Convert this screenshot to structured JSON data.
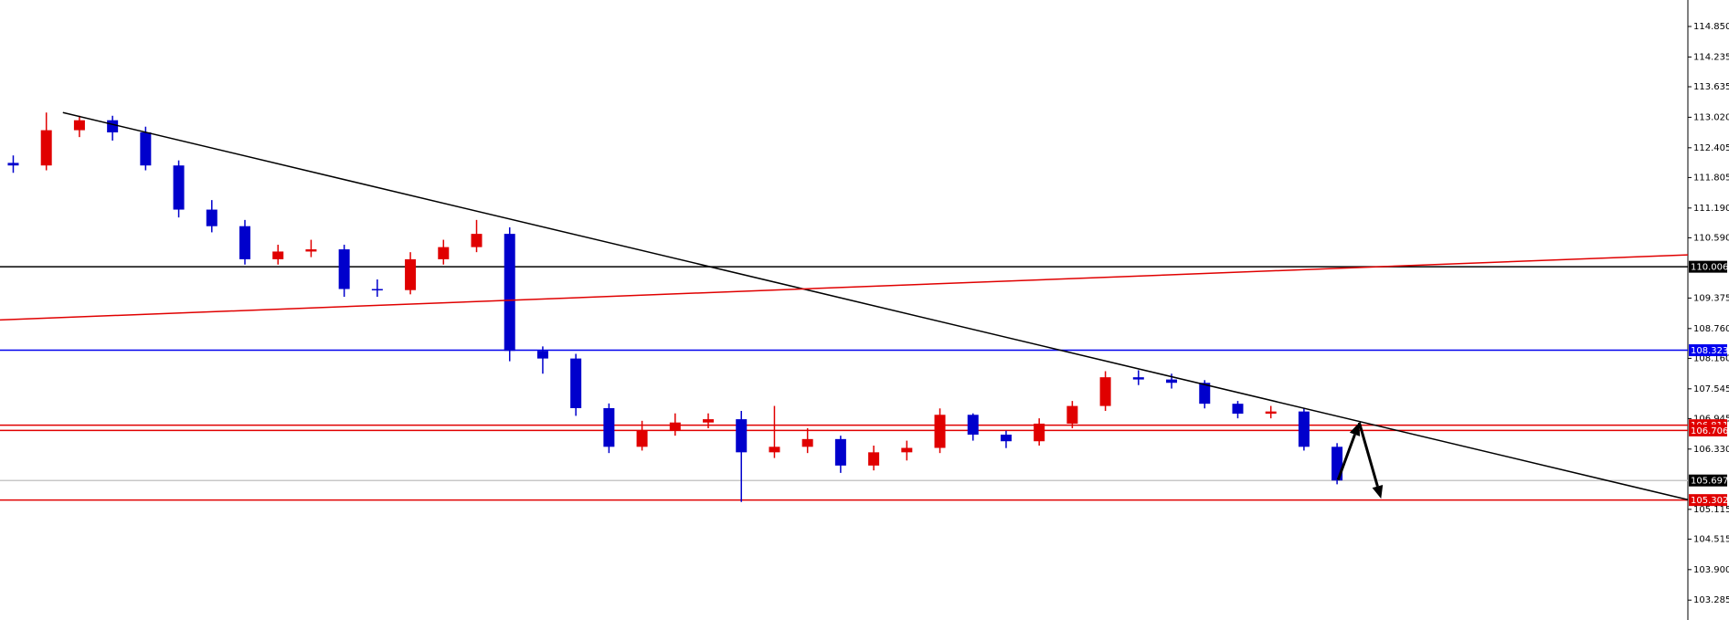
{
  "chart_data": {
    "type": "candlestick",
    "categories": [
      null,
      null,
      null,
      null,
      null,
      null,
      null,
      null,
      null,
      null,
      null,
      null,
      null,
      null,
      null,
      null,
      null,
      null,
      null,
      null,
      null,
      null,
      null,
      null,
      null,
      null,
      null,
      null,
      null,
      null,
      null,
      null,
      null,
      null,
      null,
      null,
      null,
      null,
      null,
      null,
      null
    ],
    "open": [
      112.1,
      112.048,
      112.759,
      112.96,
      112.715,
      112.048,
      111.158,
      110.824,
      110.157,
      110.313,
      110.357,
      109.557,
      109.535,
      110.157,
      110.402,
      110.669,
      108.311,
      108.156,
      107.155,
      106.376,
      106.71,
      106.866,
      106.932,
      106.265,
      106.376,
      106.532,
      105.998,
      106.265,
      106.354,
      107.021,
      106.621,
      106.488,
      106.843,
      107.199,
      107.778,
      107.733,
      107.666,
      107.244,
      107.044,
      107.088,
      106.376
    ],
    "high": [
      112.25,
      113.115,
      113.05,
      113.05,
      112.83,
      112.15,
      111.35,
      110.95,
      110.45,
      110.55,
      110.45,
      109.75,
      110.3,
      110.55,
      110.95,
      110.8,
      108.4,
      108.25,
      107.25,
      106.9,
      107.05,
      107.05,
      107.1,
      107.2,
      106.75,
      106.6,
      106.4,
      106.5,
      107.15,
      107.05,
      106.7,
      106.95,
      107.3,
      107.9,
      107.92,
      107.85,
      107.72,
      107.3,
      107.2,
      107.15,
      106.45
    ],
    "low": [
      111.9,
      111.95,
      112.62,
      112.55,
      111.95,
      111.0,
      110.7,
      110.05,
      110.05,
      110.2,
      109.4,
      109.4,
      109.45,
      110.05,
      110.3,
      108.1,
      107.85,
      107.0,
      106.25,
      106.3,
      106.6,
      106.75,
      105.264,
      106.15,
      106.25,
      105.85,
      105.9,
      106.1,
      106.25,
      106.5,
      106.35,
      106.4,
      106.75,
      107.1,
      107.62,
      107.55,
      107.15,
      106.95,
      106.95,
      106.3,
      105.62
    ],
    "close": [
      112.048,
      112.759,
      112.96,
      112.715,
      112.048,
      111.158,
      110.824,
      110.157,
      110.313,
      110.357,
      109.557,
      109.535,
      110.157,
      110.402,
      110.669,
      108.311,
      108.156,
      107.155,
      106.376,
      106.71,
      106.866,
      106.932,
      106.265,
      106.376,
      106.532,
      105.998,
      106.265,
      106.354,
      107.021,
      106.621,
      106.488,
      106.843,
      107.199,
      107.778,
      107.733,
      107.666,
      107.244,
      107.044,
      107.088,
      106.376,
      105.697
    ],
    "up_color": "#e00000",
    "down_color": "#0000cc",
    "xlim": [
      -0.4,
      50.6
    ],
    "ylim": [
      102.884,
      115.384
    ],
    "yticks": [
      {
        "value": 114.85,
        "label": "114.850"
      },
      {
        "value": 114.235,
        "label": "114.235"
      },
      {
        "value": 113.635,
        "label": "113.635"
      },
      {
        "value": 113.02,
        "label": "113.020"
      },
      {
        "value": 112.405,
        "label": "112.405"
      },
      {
        "value": 111.805,
        "label": "111.805"
      },
      {
        "value": 111.19,
        "label": "111.190"
      },
      {
        "value": 110.59,
        "label": "110.590"
      },
      {
        "value": 109.375,
        "label": "109.375"
      },
      {
        "value": 108.76,
        "label": "108.760"
      },
      {
        "value": 108.16,
        "label": "108.160"
      },
      {
        "value": 107.545,
        "label": "107.545"
      },
      {
        "value": 106.945,
        "label": "106.945"
      },
      {
        "value": 106.33,
        "label": "106.330"
      },
      {
        "value": 105.115,
        "label": "105.115"
      },
      {
        "value": 104.515,
        "label": "104.515"
      },
      {
        "value": 103.9,
        "label": "103.900"
      },
      {
        "value": 103.285,
        "label": "103.285"
      }
    ],
    "levels": [
      {
        "value": 110.006,
        "color": "#000000",
        "box": "#000000"
      },
      {
        "value": 108.323,
        "color": "#0000ee",
        "box": "#0000ee"
      },
      {
        "value": 106.811,
        "color": "#e00000",
        "box": "#e00000"
      },
      {
        "value": 106.706,
        "color": "#e00000",
        "box": "#e00000"
      },
      {
        "value": 105.697,
        "color": "#c8c8c8",
        "box": "#000000"
      },
      {
        "value": 105.302,
        "color": "#e00000",
        "box": "#e00000"
      }
    ],
    "trendlines": [
      {
        "x": [
          1.5,
          50.6
        ],
        "y": [
          113.115,
          105.309
        ],
        "color": "#000000"
      },
      {
        "x": [
          -0.4,
          50.6
        ],
        "y": [
          108.934,
          110.246
        ],
        "color": "#e00000"
      }
    ],
    "arrows": [
      {
        "x": [
          40.03,
          40.67
        ],
        "y": [
          105.709,
          106.866
        ],
        "color": "#000000"
      },
      {
        "x": [
          40.67,
          41.33
        ],
        "y": [
          106.866,
          105.331
        ],
        "color": "#000000"
      }
    ]
  }
}
